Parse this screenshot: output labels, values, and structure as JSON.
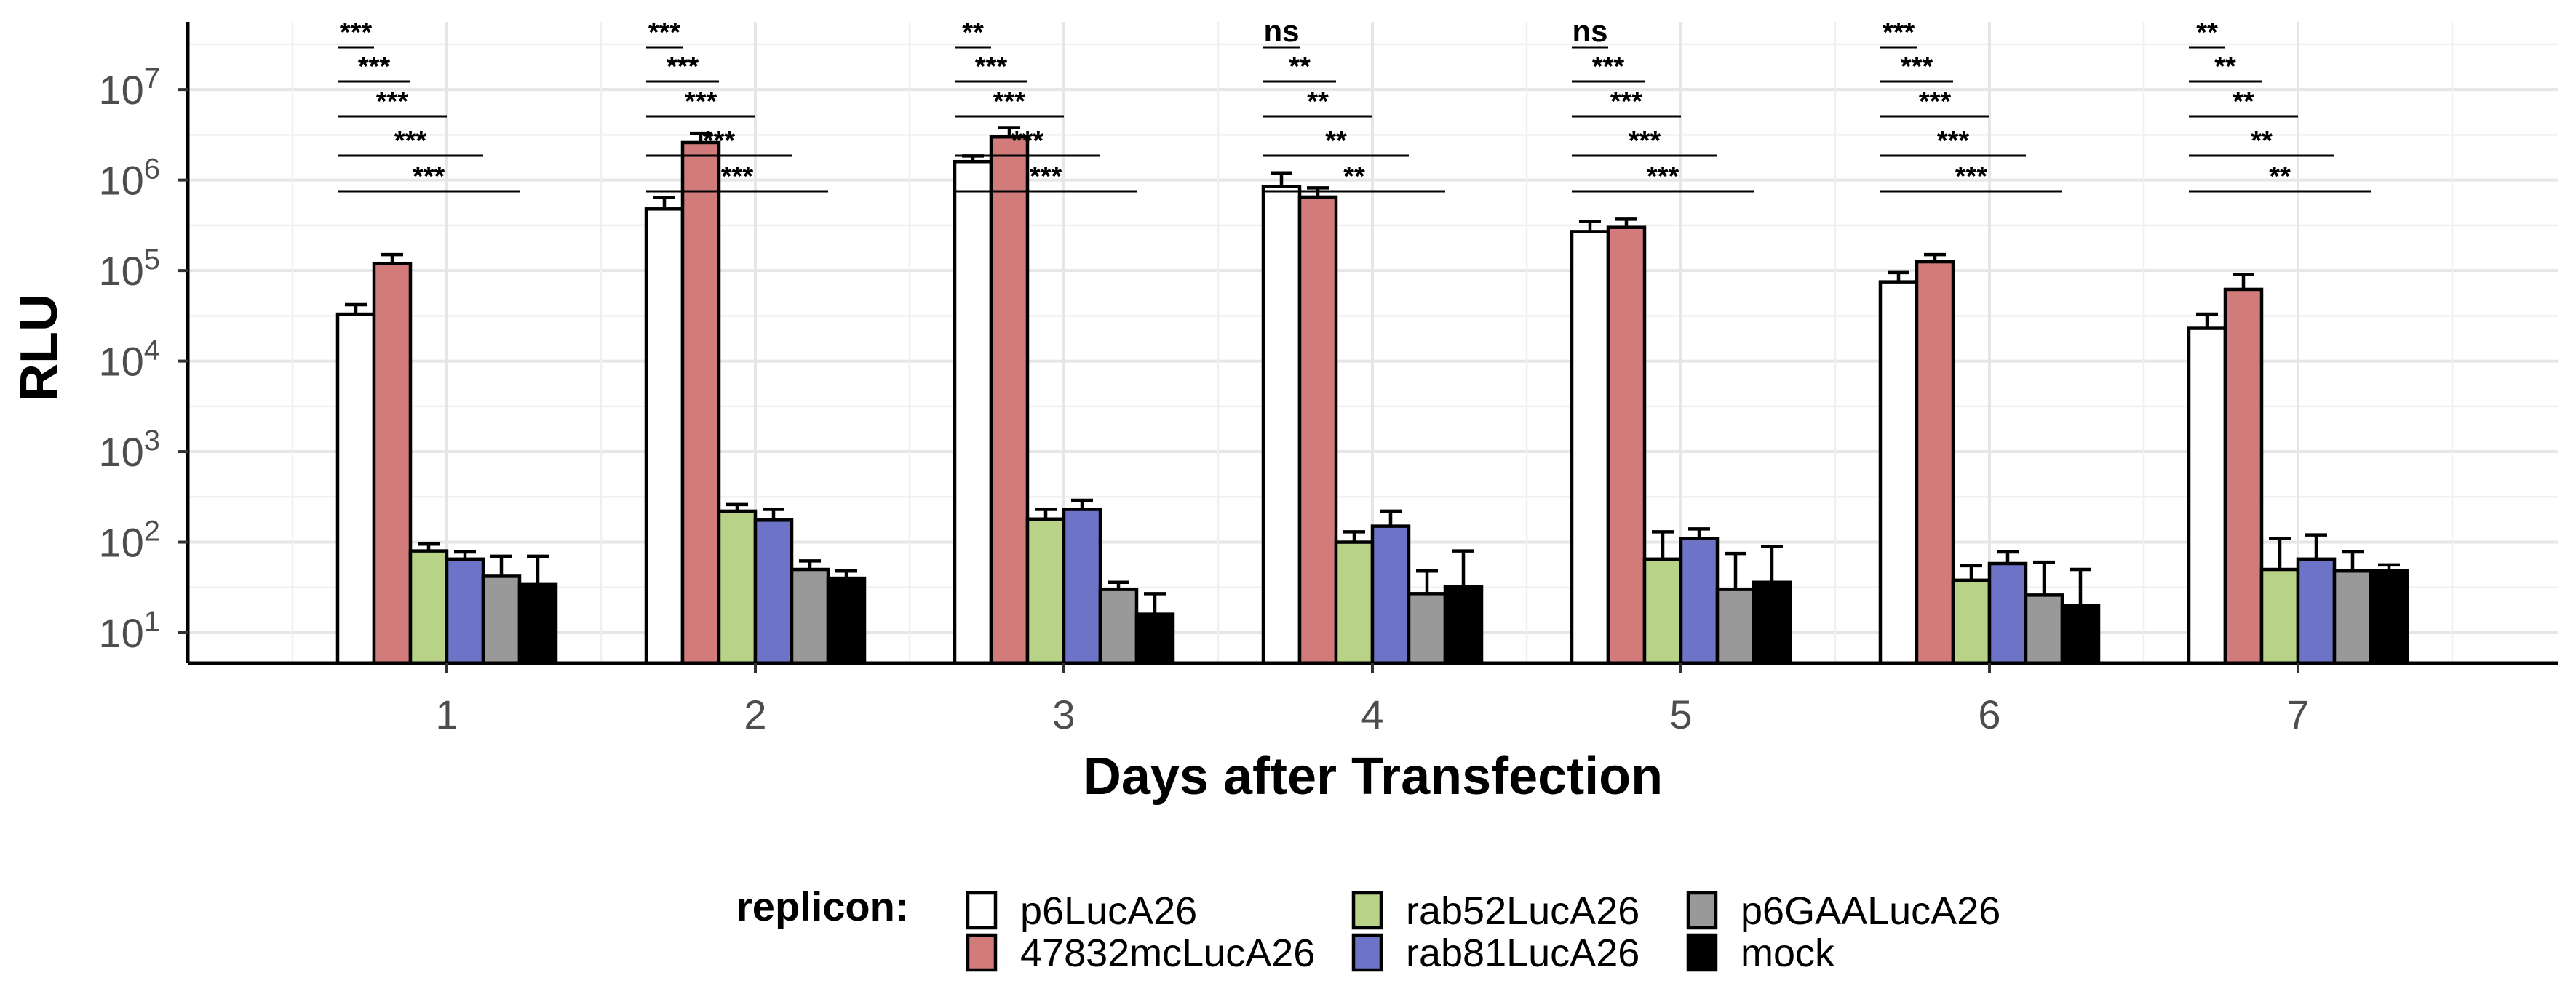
{
  "chart_data": {
    "type": "bar",
    "scale": "log10",
    "xlabel": "Days after Transfection",
    "ylabel": "RLU",
    "categories": [
      "1",
      "2",
      "3",
      "4",
      "5",
      "6",
      "7"
    ],
    "ylim": [
      4.6,
      56000000
    ],
    "y_ticks": [
      {
        "value": 10,
        "base": "10",
        "exp": "1"
      },
      {
        "value": 100,
        "base": "10",
        "exp": "2"
      },
      {
        "value": 1000,
        "base": "10",
        "exp": "3"
      },
      {
        "value": 10000,
        "base": "10",
        "exp": "4"
      },
      {
        "value": 100000,
        "base": "10",
        "exp": "5"
      },
      {
        "value": 1000000,
        "base": "10",
        "exp": "6"
      },
      {
        "value": 10000000,
        "base": "10",
        "exp": "7"
      }
    ],
    "grid": true,
    "legend": {
      "title": "replicon:",
      "position": "bottom"
    },
    "series": [
      {
        "name": "p6LucA26",
        "color": "#ffffff",
        "values": [
          33000,
          480000,
          1600000,
          850000,
          270000,
          75000,
          23000
        ],
        "errors": [
          42000,
          640000,
          1850000,
          1200000,
          350000,
          95000,
          33000
        ]
      },
      {
        "name": "47832mcLucA26",
        "color": "#d17b7b",
        "values": [
          120000,
          2600000,
          3000000,
          650000,
          300000,
          125000,
          62000
        ],
        "errors": [
          150000,
          3300000,
          3800000,
          820000,
          370000,
          150000,
          90000
        ]
      },
      {
        "name": "rab52LucA26",
        "color": "#b8d287",
        "values": [
          80,
          220,
          180,
          100,
          65,
          38,
          50
        ],
        "errors": [
          95,
          260,
          230,
          130,
          130,
          55,
          110
        ]
      },
      {
        "name": "rab81LucA26",
        "color": "#6d74c8",
        "values": [
          65,
          175,
          230,
          150,
          110,
          58,
          65
        ],
        "errors": [
          78,
          230,
          290,
          220,
          140,
          78,
          120
        ]
      },
      {
        "name": "p6GAALucA26",
        "color": "#999999",
        "values": [
          42,
          50,
          30,
          27,
          30,
          26,
          48
        ],
        "errors": [
          70,
          62,
          36,
          48,
          75,
          60,
          78
        ]
      },
      {
        "name": "mock",
        "color": "#000000",
        "values": [
          34,
          40,
          16,
          32,
          36,
          20,
          48
        ],
        "errors": [
          70,
          48,
          27,
          80,
          90,
          50,
          56
        ]
      }
    ],
    "significance": [
      [
        "***",
        "***",
        "***",
        "***",
        "***"
      ],
      [
        "***",
        "***",
        "***",
        "***",
        "***"
      ],
      [
        "**",
        "***",
        "***",
        "***",
        "***"
      ],
      [
        "ns",
        "**",
        "**",
        "**",
        "**"
      ],
      [
        "ns",
        "***",
        "***",
        "***",
        "***"
      ],
      [
        "***",
        "***",
        "***",
        "***",
        "***"
      ],
      [
        "**",
        "**",
        "**",
        "**",
        "**"
      ]
    ]
  }
}
